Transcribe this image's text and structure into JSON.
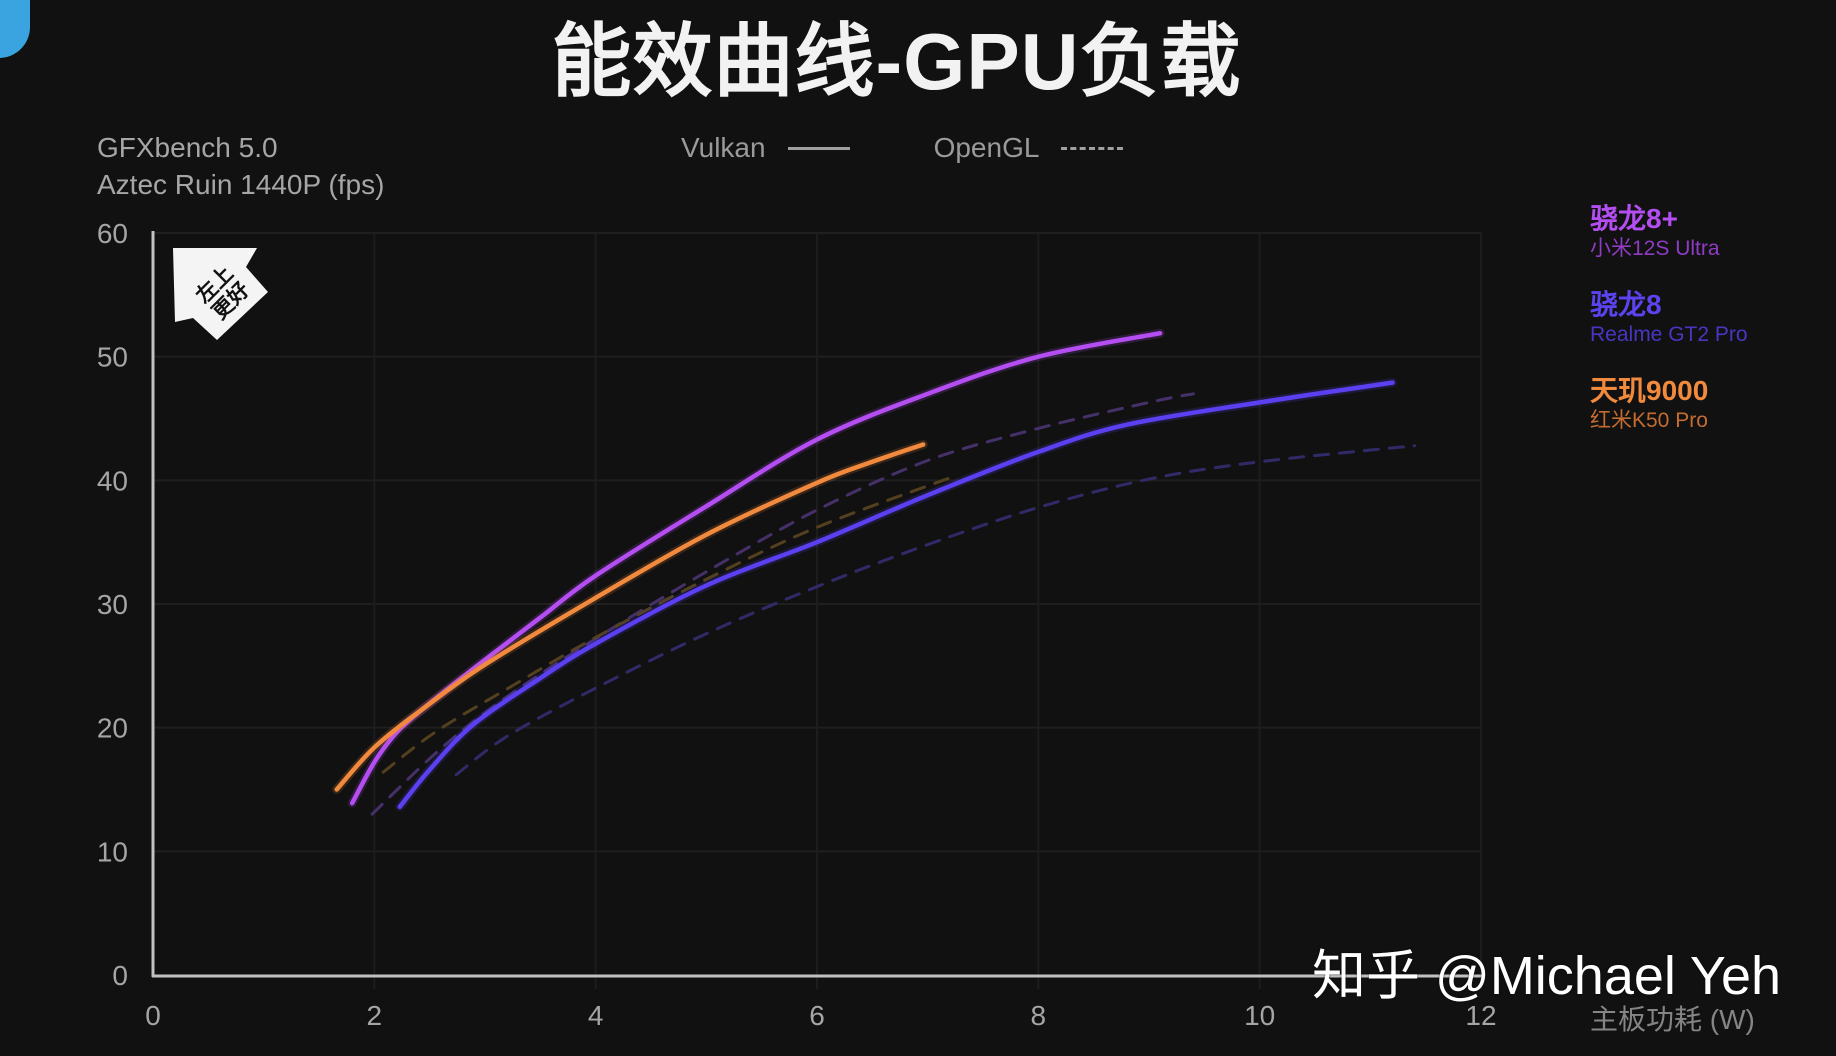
{
  "title": "能效曲线-GPU负载",
  "benchmark": {
    "line1": "GFXbench 5.0",
    "line2": "Aztec Ruin 1440P (fps)"
  },
  "api_legend": [
    {
      "label": "Vulkan",
      "style": "solid"
    },
    {
      "label": "OpenGL",
      "style": "dashed"
    }
  ],
  "device_legend": [
    {
      "chip": "骁龙8+",
      "device": "小米12S Ultra",
      "chip_color": "#b44ef2",
      "device_color": "#8f3bc4"
    },
    {
      "chip": "骁龙8",
      "device": "Realme GT2 Pro",
      "chip_color": "#5b44f0",
      "device_color": "#4836c2"
    },
    {
      "chip": "天玑9000",
      "device": "红米K50 Pro",
      "chip_color": "#f28a3e",
      "device_color": "#c46c30"
    }
  ],
  "badge": {
    "line1": "左上",
    "line2": "更好"
  },
  "watermark": "知乎 @Michael Yeh",
  "chart_data": {
    "type": "line",
    "title": "能效曲线-GPU负载",
    "subtitle": "GFXbench 5.0 Aztec Ruin 1440P (fps)",
    "xlabel": "主板功耗 (W)",
    "ylabel": "Aztec Ruin 1440P (fps)",
    "xlim": [
      0,
      12
    ],
    "ylim": [
      0,
      60
    ],
    "xticks": [
      0,
      2,
      4,
      6,
      8,
      10,
      12
    ],
    "yticks": [
      0,
      10,
      20,
      30,
      40,
      50,
      60
    ],
    "grid": true,
    "legend_position": "right",
    "annotations": [
      "左上更好"
    ],
    "series": [
      {
        "name": "骁龙8+ 小米12S Ultra (Vulkan)",
        "chip": "骁龙8+",
        "api": "Vulkan",
        "color": "#b44ef2",
        "dashed": false,
        "points": [
          [
            1.8,
            13.9
          ],
          [
            2.0,
            17.2
          ],
          [
            2.2,
            19.6
          ],
          [
            2.45,
            21.6
          ],
          [
            2.9,
            24.8
          ],
          [
            3.5,
            28.9
          ],
          [
            4,
            32.3
          ],
          [
            5,
            37.9
          ],
          [
            6,
            43.3
          ],
          [
            7,
            47.0
          ],
          [
            8,
            50.0
          ],
          [
            9.1,
            51.9
          ]
        ]
      },
      {
        "name": "骁龙8+ 小米12S Ultra (OpenGL)",
        "chip": "骁龙8+",
        "api": "OpenGL",
        "color": "#45306a",
        "dashed": true,
        "points": [
          [
            1.98,
            13.0
          ],
          [
            2.6,
            18.3
          ],
          [
            3.2,
            22.5
          ],
          [
            4,
            27.2
          ],
          [
            5,
            32.6
          ],
          [
            6,
            37.6
          ],
          [
            7,
            41.6
          ],
          [
            8,
            44.2
          ],
          [
            9,
            46.3
          ],
          [
            9.4,
            47.0
          ]
        ]
      },
      {
        "name": "骁龙8 Realme GT2 Pro (Vulkan)",
        "chip": "骁龙8",
        "api": "Vulkan",
        "color": "#5b40f2",
        "dashed": false,
        "points": [
          [
            2.23,
            13.6
          ],
          [
            2.5,
            16.6
          ],
          [
            2.9,
            20.3
          ],
          [
            3.5,
            24.0
          ],
          [
            4,
            26.8
          ],
          [
            5,
            31.5
          ],
          [
            6,
            35.0
          ],
          [
            7,
            38.8
          ],
          [
            8,
            42.3
          ],
          [
            8.8,
            44.5
          ],
          [
            10,
            46.3
          ],
          [
            11.2,
            47.9
          ]
        ]
      },
      {
        "name": "骁龙8 Realme GT2 Pro (OpenGL)",
        "chip": "骁龙8",
        "api": "OpenGL",
        "color": "#302b68",
        "dashed": true,
        "points": [
          [
            2.74,
            16.2
          ],
          [
            3.2,
            19.3
          ],
          [
            4,
            23.2
          ],
          [
            5,
            27.6
          ],
          [
            6,
            31.4
          ],
          [
            7,
            34.8
          ],
          [
            8,
            37.8
          ],
          [
            9,
            40.1
          ],
          [
            10,
            41.5
          ],
          [
            11.4,
            42.8
          ]
        ]
      },
      {
        "name": "天玑9000 红米K50 Pro (Vulkan)",
        "chip": "天玑9000",
        "api": "Vulkan",
        "color": "#f28a3e",
        "dashed": false,
        "points": [
          [
            1.66,
            15.0
          ],
          [
            2.0,
            18.4
          ],
          [
            2.45,
            21.6
          ],
          [
            3,
            25.1
          ],
          [
            4,
            30.5
          ],
          [
            5,
            35.6
          ],
          [
            6,
            39.8
          ],
          [
            6.5,
            41.5
          ],
          [
            6.96,
            42.9
          ]
        ]
      },
      {
        "name": "天玑9000 红米K50 Pro (OpenGL)",
        "chip": "天玑9000",
        "api": "OpenGL",
        "color": "#54401f",
        "dashed": true,
        "points": [
          [
            2.08,
            16.4
          ],
          [
            2.56,
            19.7
          ],
          [
            3.23,
            23.3
          ],
          [
            4,
            27.3
          ],
          [
            5,
            32.0
          ],
          [
            6,
            36.2
          ],
          [
            7.2,
            40.2
          ]
        ]
      }
    ]
  }
}
